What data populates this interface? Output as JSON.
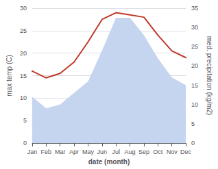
{
  "chart_data": {
    "type": "line",
    "xlabel": "date (month)",
    "ylabel": "max temp (C)",
    "y2label": "med. precipitation (kg/m2)",
    "categories": [
      "Jan",
      "Feb",
      "Mar",
      "Apr",
      "May",
      "Jun",
      "Jul",
      "Aug",
      "Sep",
      "Oct",
      "Nov",
      "Dec"
    ],
    "series": [
      {
        "type": "area",
        "axis": "y2",
        "color": "#c5d4ef",
        "values": [
          12.0,
          9.0,
          10.0,
          13.0,
          16.0,
          24.0,
          32.5,
          32.5,
          28.0,
          22.0,
          17.0,
          15.0
        ]
      },
      {
        "type": "line",
        "color": "#c0392b",
        "values": [
          16.0,
          14.5,
          15.5,
          18.0,
          22.5,
          27.5,
          29.0,
          28.5,
          28.0,
          24.0,
          20.5,
          19.0
        ]
      }
    ],
    "ylim": [
      0,
      30
    ],
    "yticks": [
      0,
      5,
      10,
      15,
      20,
      25,
      30
    ],
    "y2lim": [
      0,
      35
    ],
    "y2ticks": [
      0,
      5,
      10,
      15,
      20,
      25,
      30,
      35
    ],
    "grid": true
  }
}
